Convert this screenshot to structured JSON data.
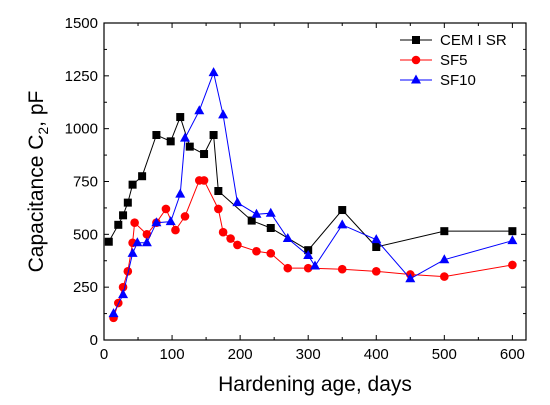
{
  "chart_data": {
    "type": "line",
    "xlabel": "Hardening age, days",
    "ylabel": "Capacitance C",
    "ylabel_subscript": "2",
    "ylabel_unit": ", pF",
    "xlim": [
      0,
      620
    ],
    "ylim": [
      0,
      1500
    ],
    "x_ticks": [
      0,
      100,
      200,
      300,
      400,
      500,
      600
    ],
    "x_tick_labels": [
      "0",
      "100",
      "200",
      "300",
      "400",
      "500",
      "600"
    ],
    "y_ticks": [
      0,
      250,
      500,
      750,
      1000,
      1250,
      1500
    ],
    "y_tick_labels": [
      "0",
      "250",
      "500",
      "750",
      "1000",
      "1250",
      "1500"
    ],
    "grid": false,
    "legend_position": "top-right",
    "series": [
      {
        "name": "CEM I SR",
        "color": "#000000",
        "marker": "square",
        "x": [
          7,
          21,
          28,
          35,
          42,
          56,
          77,
          98,
          112,
          126,
          147,
          161,
          168,
          217,
          245,
          300,
          350,
          400,
          500,
          600
        ],
        "y": [
          465,
          545,
          590,
          650,
          735,
          775,
          970,
          940,
          1055,
          915,
          880,
          970,
          705,
          565,
          530,
          425,
          615,
          440,
          515,
          515
        ]
      },
      {
        "name": "SF5",
        "color": "#ff0000",
        "marker": "circle",
        "x": [
          14,
          21,
          28,
          35,
          42,
          45,
          63,
          77,
          91,
          105,
          119,
          140,
          147,
          168,
          175,
          186,
          196,
          224,
          245,
          270,
          300,
          350,
          400,
          450,
          500,
          600
        ],
        "y": [
          105,
          175,
          250,
          325,
          460,
          555,
          500,
          555,
          620,
          520,
          585,
          755,
          755,
          620,
          510,
          480,
          450,
          420,
          410,
          340,
          340,
          335,
          325,
          310,
          300,
          355
        ]
      },
      {
        "name": "SF10",
        "color": "#0000ff",
        "marker": "triangle",
        "x": [
          14,
          28,
          42,
          49,
          63,
          77,
          98,
          112,
          119,
          140,
          161,
          175,
          196,
          224,
          245,
          270,
          300,
          310,
          350,
          400,
          450,
          500,
          600
        ],
        "y": [
          125,
          215,
          410,
          460,
          460,
          555,
          560,
          690,
          955,
          1085,
          1265,
          1065,
          650,
          595,
          600,
          480,
          400,
          350,
          545,
          475,
          290,
          380,
          470
        ]
      }
    ]
  }
}
